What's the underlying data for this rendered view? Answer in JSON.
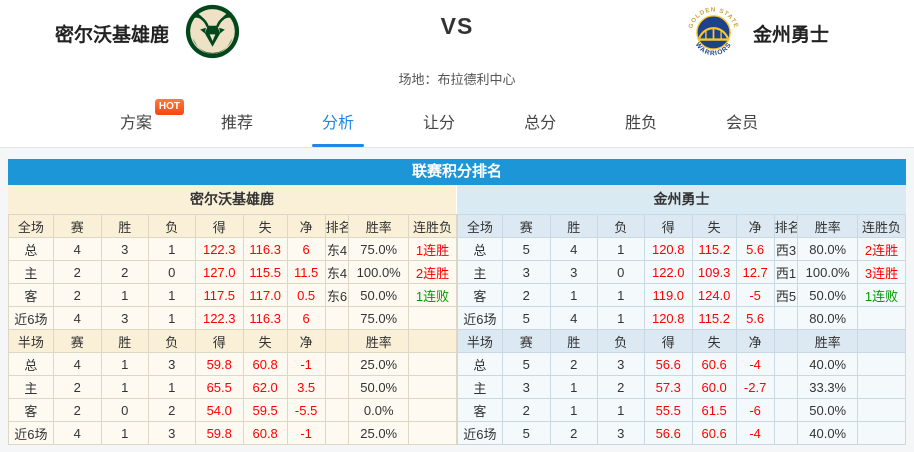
{
  "header": {
    "home_name": "密尔沃基雄鹿",
    "away_name": "金州勇士",
    "vs": "VS",
    "venue": "场地：布拉德利中心"
  },
  "logos": {
    "home": "milwaukee-bucks",
    "away": "golden-state-warriors",
    "away_text_top": "GOLDEN STATE",
    "away_text_bottom": "WARRIORS"
  },
  "nav": {
    "tabs": [
      {
        "label": "方案",
        "badge": "HOT",
        "active": false
      },
      {
        "label": "推荐",
        "active": false
      },
      {
        "label": "分析",
        "active": true
      },
      {
        "label": "让分",
        "active": false
      },
      {
        "label": "总分",
        "active": false
      },
      {
        "label": "胜负",
        "active": false
      },
      {
        "label": "会员",
        "active": false
      }
    ]
  },
  "standings": {
    "title": "联赛积分排名",
    "full_headers": [
      "全场",
      "赛",
      "胜",
      "负",
      "得",
      "失",
      "净",
      "排名",
      "胜率",
      "连胜负"
    ],
    "half_headers": [
      "半场",
      "赛",
      "胜",
      "负",
      "得",
      "失",
      "净",
      "",
      "胜率",
      ""
    ],
    "teams": [
      {
        "name": "密尔沃基雄鹿",
        "full": [
          [
            "总",
            "4",
            "3",
            "1",
            "122.3",
            "116.3",
            "6",
            "东4",
            "75.0%",
            "1连胜"
          ],
          [
            "主",
            "2",
            "2",
            "0",
            "127.0",
            "115.5",
            "11.5",
            "东4",
            "100.0%",
            "2连胜"
          ],
          [
            "客",
            "2",
            "1",
            "1",
            "117.5",
            "117.0",
            "0.5",
            "东6",
            "50.0%",
            "1连败"
          ],
          [
            "近6场",
            "4",
            "3",
            "1",
            "122.3",
            "116.3",
            "6",
            "",
            "75.0%",
            ""
          ]
        ],
        "half": [
          [
            "总",
            "4",
            "1",
            "3",
            "59.8",
            "60.8",
            "-1",
            "",
            "25.0%",
            ""
          ],
          [
            "主",
            "2",
            "1",
            "1",
            "65.5",
            "62.0",
            "3.5",
            "",
            "50.0%",
            ""
          ],
          [
            "客",
            "2",
            "0",
            "2",
            "54.0",
            "59.5",
            "-5.5",
            "",
            "0.0%",
            ""
          ],
          [
            "近6场",
            "4",
            "1",
            "3",
            "59.8",
            "60.8",
            "-1",
            "",
            "25.0%",
            ""
          ]
        ]
      },
      {
        "name": "金州勇士",
        "full": [
          [
            "总",
            "5",
            "4",
            "1",
            "120.8",
            "115.2",
            "5.6",
            "西3",
            "80.0%",
            "2连胜"
          ],
          [
            "主",
            "3",
            "3",
            "0",
            "122.0",
            "109.3",
            "12.7",
            "西1",
            "100.0%",
            "3连胜"
          ],
          [
            "客",
            "2",
            "1",
            "1",
            "119.0",
            "124.0",
            "-5",
            "西5",
            "50.0%",
            "1连败"
          ],
          [
            "近6场",
            "5",
            "4",
            "1",
            "120.8",
            "115.2",
            "5.6",
            "",
            "80.0%",
            ""
          ]
        ],
        "half": [
          [
            "总",
            "5",
            "2",
            "3",
            "56.6",
            "60.6",
            "-4",
            "",
            "40.0%",
            ""
          ],
          [
            "主",
            "3",
            "1",
            "2",
            "57.3",
            "60.0",
            "-2.7",
            "",
            "33.3%",
            ""
          ],
          [
            "客",
            "2",
            "1",
            "1",
            "55.5",
            "61.5",
            "-6",
            "",
            "50.0%",
            ""
          ],
          [
            "近6场",
            "5",
            "2",
            "3",
            "56.6",
            "60.6",
            "-4",
            "",
            "40.0%",
            ""
          ]
        ]
      }
    ]
  },
  "colors": {
    "title_bar": "#1C96D6",
    "active_tab": "#1E87EA",
    "hot_badge": "#FA541C",
    "home_tint": "#FAF0D8",
    "away_tint": "#DAEAF2",
    "stat_red": "#FF0000",
    "streak_win_red": "#FF0000",
    "streak_loss_green": "#009900",
    "bucks_green": "#00471B",
    "bucks_cream": "#EEE1C6",
    "warriors_blue": "#1D428A",
    "warriors_gold": "#FFC72C"
  }
}
